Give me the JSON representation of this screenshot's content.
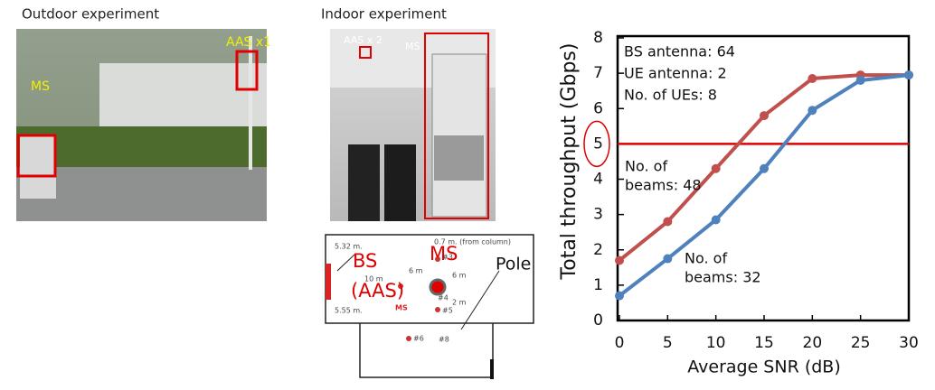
{
  "outdoor": {
    "title": "Outdoor experiment",
    "labels": [
      "MS",
      "AAS x1"
    ]
  },
  "indoor": {
    "title": "Indoor experiment",
    "labels": [
      "AAS x 2",
      "MS"
    ]
  },
  "floor_plan": {
    "labels": [
      "5.32 m.",
      "0.7 m. (from column)",
      "6 m",
      "10 m",
      "6 m",
      "2 m",
      "5.55 m.",
      "#3",
      "#4",
      "#5",
      "#6",
      "#8",
      "MS",
      "BS",
      "(AAS)",
      "MS",
      "Pole"
    ]
  },
  "chart_data": {
    "type": "line",
    "y_label": "Total throughput (Gbps)",
    "x_label": "Average SNR (dB)",
    "x": [
      0,
      5,
      10,
      15,
      20,
      25,
      30
    ],
    "series": [
      {
        "color": "#c0504d",
        "values": [
          1.7,
          2.8,
          4.3,
          5.8,
          6.85,
          6.95,
          6.95
        ],
        "label_lines": [
          "No. of",
          "beams: 48"
        ]
      },
      {
        "color": "#4f81bd",
        "values": [
          0.7,
          1.75,
          2.85,
          4.3,
          5.95,
          6.8,
          6.95
        ],
        "label_lines": [
          "No. of",
          "beams: 32"
        ]
      }
    ],
    "annotations": [
      "BS antenna: 64",
      "UE antenna: 2",
      "No. of UEs: 8"
    ],
    "xlim": [
      0,
      30
    ],
    "ylim": [
      0,
      8
    ],
    "xticks": [
      0,
      5,
      10,
      15,
      20,
      25,
      30
    ],
    "yticks": [
      0,
      1,
      2,
      3,
      4,
      5,
      6,
      7,
      8
    ],
    "ref_line": {
      "value": 5,
      "color": "#e00000"
    }
  }
}
